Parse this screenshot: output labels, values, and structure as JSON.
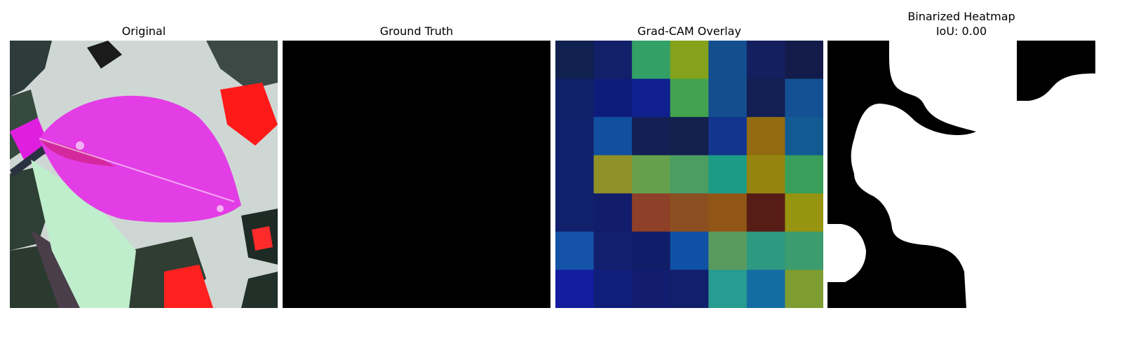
{
  "figure": {
    "panels": [
      {
        "title": "Original"
      },
      {
        "title": "Ground Truth"
      },
      {
        "title": "Grad-CAM Overlay"
      },
      {
        "title": "Binarized Heatmap",
        "subtitle": "IoU: 0.00"
      }
    ],
    "gradcam_grid": [
      [
        "#10204f",
        "#122069",
        "#33a066",
        "#84a21b",
        "#144e8e",
        "#131f5e",
        "#121b4a"
      ],
      [
        "#10216a",
        "#0d1c7a",
        "#0f208e",
        "#42a24f",
        "#144e8e",
        "#131f52",
        "#145194"
      ],
      [
        "#11216b",
        "#114fa0",
        "#131f55",
        "#131f4d",
        "#12358f",
        "#936b10",
        "#125a92"
      ],
      [
        "#11206d",
        "#8f9028",
        "#66a04c",
        "#4b9d62",
        "#1c9c86",
        "#958510",
        "#389e5a"
      ],
      [
        "#10206b",
        "#111d6b",
        "#8f4028",
        "#8c4f21",
        "#915616",
        "#571c15",
        "#969410"
      ],
      [
        "#1453a8",
        "#111f6e",
        "#101d68",
        "#1051a6",
        "#5b9a5e",
        "#2e9981",
        "#3b9c6e"
      ],
      [
        "#131d9e",
        "#101e7a",
        "#121d70",
        "#121f6b",
        "#279c90",
        "#136da3",
        "#7d9c32"
      ]
    ]
  }
}
